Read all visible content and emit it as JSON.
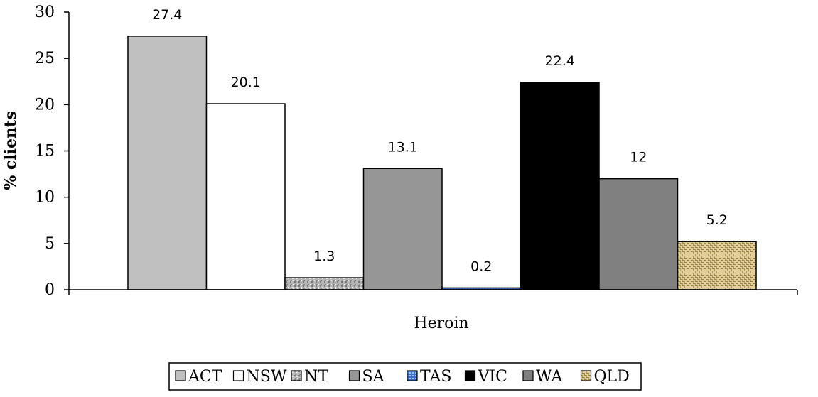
{
  "chart_data": {
    "type": "bar",
    "title": "",
    "xlabel": "",
    "ylabel": "% clients",
    "categories": [
      "Heroin"
    ],
    "ylim": [
      0,
      30
    ],
    "yticks": [
      0,
      5,
      10,
      15,
      20,
      25,
      30
    ],
    "grid": false,
    "legend_position": "bottom",
    "series": [
      {
        "name": "ACT",
        "values": [
          27.4
        ],
        "value_label": "27.4",
        "color": "#c0c0c0",
        "pattern": "solid"
      },
      {
        "name": "NSW",
        "values": [
          20.1
        ],
        "value_label": "20.1",
        "color": "#ffffff",
        "pattern": "solid"
      },
      {
        "name": "NT",
        "values": [
          1.3
        ],
        "value_label": "1.3",
        "color": "#b4b4b4",
        "pattern": "speckle"
      },
      {
        "name": "SA",
        "values": [
          13.1
        ],
        "value_label": "13.1",
        "color": "#969696",
        "pattern": "solid"
      },
      {
        "name": "TAS",
        "values": [
          0.2
        ],
        "value_label": "0.2",
        "color": "#3a6fc4",
        "pattern": "blue-texture"
      },
      {
        "name": "VIC",
        "values": [
          22.4
        ],
        "value_label": "22.4",
        "color": "#000000",
        "pattern": "solid"
      },
      {
        "name": "WA",
        "values": [
          12
        ],
        "value_label": "12",
        "color": "#808080",
        "pattern": "solid"
      },
      {
        "name": "QLD",
        "values": [
          5.2
        ],
        "value_label": "5.2",
        "color": "#d9c48f",
        "pattern": "weave"
      }
    ]
  }
}
